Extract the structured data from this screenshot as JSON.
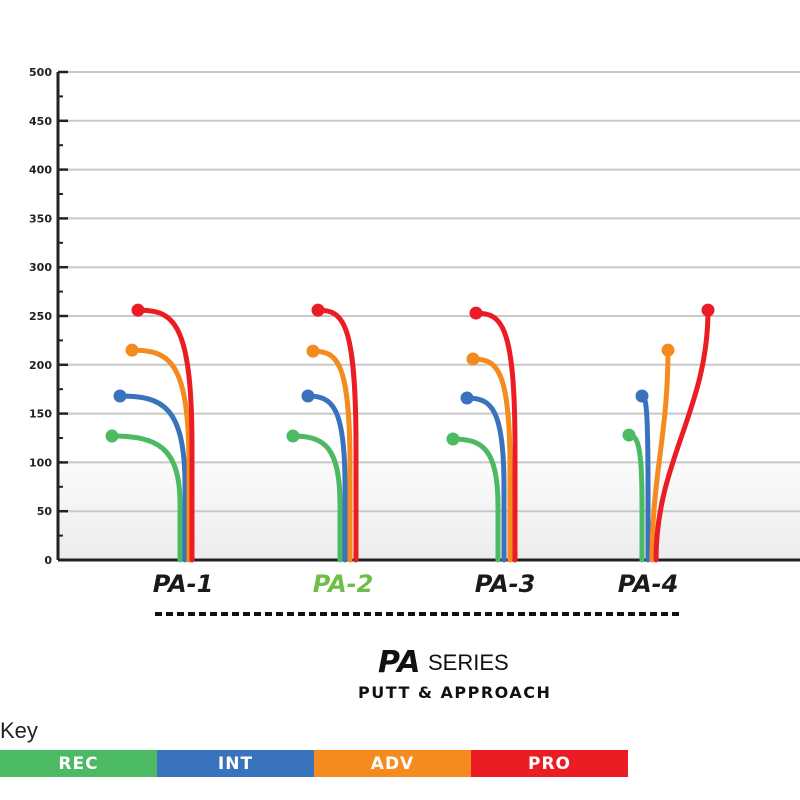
{
  "chart_data": {
    "type": "line",
    "categories": [
      "PA-1",
      "PA-2",
      "PA-3",
      "PA-4"
    ],
    "highlighted_category": "PA-2",
    "ylim": [
      0,
      500
    ],
    "y_ticks": [
      0,
      50,
      100,
      150,
      200,
      250,
      300,
      350,
      400,
      450,
      500
    ],
    "grid": true,
    "series": [
      {
        "name": "REC",
        "color": "#4cb963",
        "values": [
          127,
          127,
          124,
          128
        ]
      },
      {
        "name": "INT",
        "color": "#3a73bd",
        "values": [
          168,
          168,
          166,
          168
        ]
      },
      {
        "name": "ADV",
        "color": "#f58a1f",
        "values": [
          215,
          214,
          206,
          215
        ]
      },
      {
        "name": "PRO",
        "color": "#ec1c24",
        "values": [
          256,
          256,
          253,
          256
        ]
      }
    ]
  },
  "branding": {
    "logo": "PA",
    "series_word": "SERIES",
    "subtitle": "PUTT & APPROACH"
  },
  "key": {
    "title": "Key",
    "items": [
      "REC",
      "INT",
      "ADV",
      "PRO"
    ]
  },
  "colors": {
    "highlight": "#6dbf45",
    "label": "#1a1a1a"
  }
}
